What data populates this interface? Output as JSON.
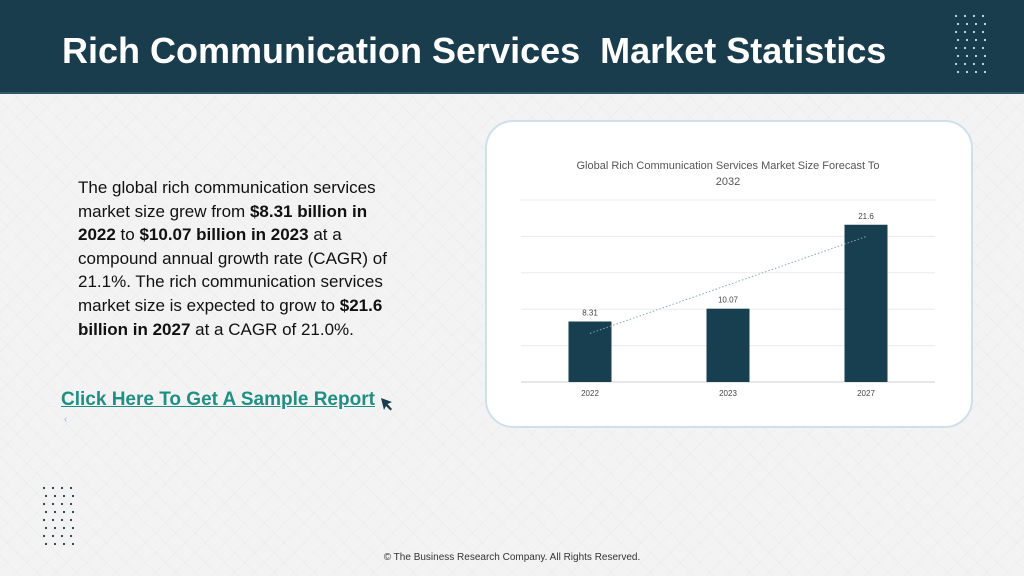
{
  "header": {
    "title": "Rich Communication Services  Market Statistics"
  },
  "body": {
    "p1": "The global rich communication services market size grew from ",
    "b1": "$8.31 billion in 2022",
    "p2": " to ",
    "b2": "$10.07 billion in 2023",
    "p3": " at a compound annual growth rate (CAGR) of 21.1%. The rich communication services market size is expected to grow to ",
    "b3": "$21.6 billion in 2027",
    "p4": " at a CAGR of 21.0%."
  },
  "cta": {
    "label": "Click Here To Get A Sample Report"
  },
  "footer": {
    "text": "© The Business Research Company. All Rights Reserved."
  },
  "colors": {
    "header_bg": "#1a3d4d",
    "bar": "#173f4f",
    "link": "#1f8f84"
  },
  "chart_data": {
    "type": "bar",
    "title": "Global Rich Communication Services Market Size Forecast To 2032",
    "categories": [
      "2022",
      "2023",
      "2027"
    ],
    "values": [
      8.31,
      10.07,
      21.6
    ],
    "data_labels": [
      "8.31",
      "10.07",
      "21.6"
    ],
    "ylim": [
      0,
      25
    ],
    "grid": true,
    "trendline": "dotted linear",
    "legend": "none"
  }
}
